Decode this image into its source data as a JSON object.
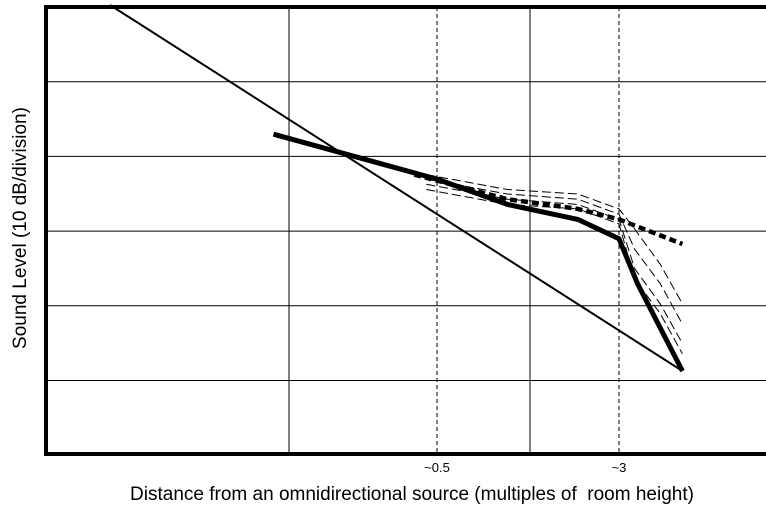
{
  "chart_data": {
    "type": "line",
    "title": "",
    "xlabel": "Distance from an omnidirectional source (multiples of  room height)",
    "ylabel": "Sound Level (10 dB/division)",
    "x_tick_labels": [
      {
        "value": 0.5,
        "label": "~0.5"
      },
      {
        "value": 3,
        "label": "~3"
      }
    ],
    "x_scale": "log",
    "grid": true,
    "y_unit_per_division": 10,
    "series": [
      {
        "style": "solid-thin",
        "role": "free-field inverse-square reference",
        "x": [
          0.02,
          5.6
        ],
        "y": [
          0,
          -49
        ]
      },
      {
        "style": "solid-thick",
        "x": [
          0.1,
          0.5,
          1.0,
          2.0,
          3.0,
          3.6,
          5.6
        ],
        "y": [
          -17.3,
          -23.3,
          -26.7,
          -28.7,
          -31.3,
          -37.3,
          -49
        ]
      },
      {
        "style": "dashed-thick",
        "x": [
          0.4,
          1.0,
          2.0,
          3.0,
          5.6
        ],
        "y": [
          -22.7,
          -26.0,
          -27.3,
          -28.7,
          -32.0
        ]
      },
      {
        "style": "dashed-thin",
        "x": [
          0.45,
          1.0,
          2.0,
          3.0,
          3.5,
          4.5,
          5.6
        ],
        "y": [
          -22.7,
          -24.7,
          -25.3,
          -27.3,
          -30.0,
          -34.7,
          -40.0
        ]
      },
      {
        "style": "dashed-thin",
        "x": [
          0.45,
          1.0,
          2.0,
          3.0,
          3.5,
          4.5,
          5.6
        ],
        "y": [
          -23.3,
          -25.3,
          -26.0,
          -28.0,
          -32.7,
          -37.3,
          -42.7
        ]
      },
      {
        "style": "dashed-thin",
        "x": [
          0.45,
          1.0,
          2.0,
          3.0,
          3.5,
          4.5,
          5.6
        ],
        "y": [
          -24.0,
          -26.0,
          -26.7,
          -28.7,
          -35.3,
          -40.0,
          -45.3
        ]
      },
      {
        "style": "dashed-thin",
        "x": [
          0.45,
          1.0,
          2.0,
          3.0,
          3.5,
          4.5,
          5.6
        ],
        "y": [
          -24.7,
          -26.7,
          -27.3,
          -29.3,
          -36.7,
          -41.3,
          -46.7
        ]
      }
    ]
  }
}
